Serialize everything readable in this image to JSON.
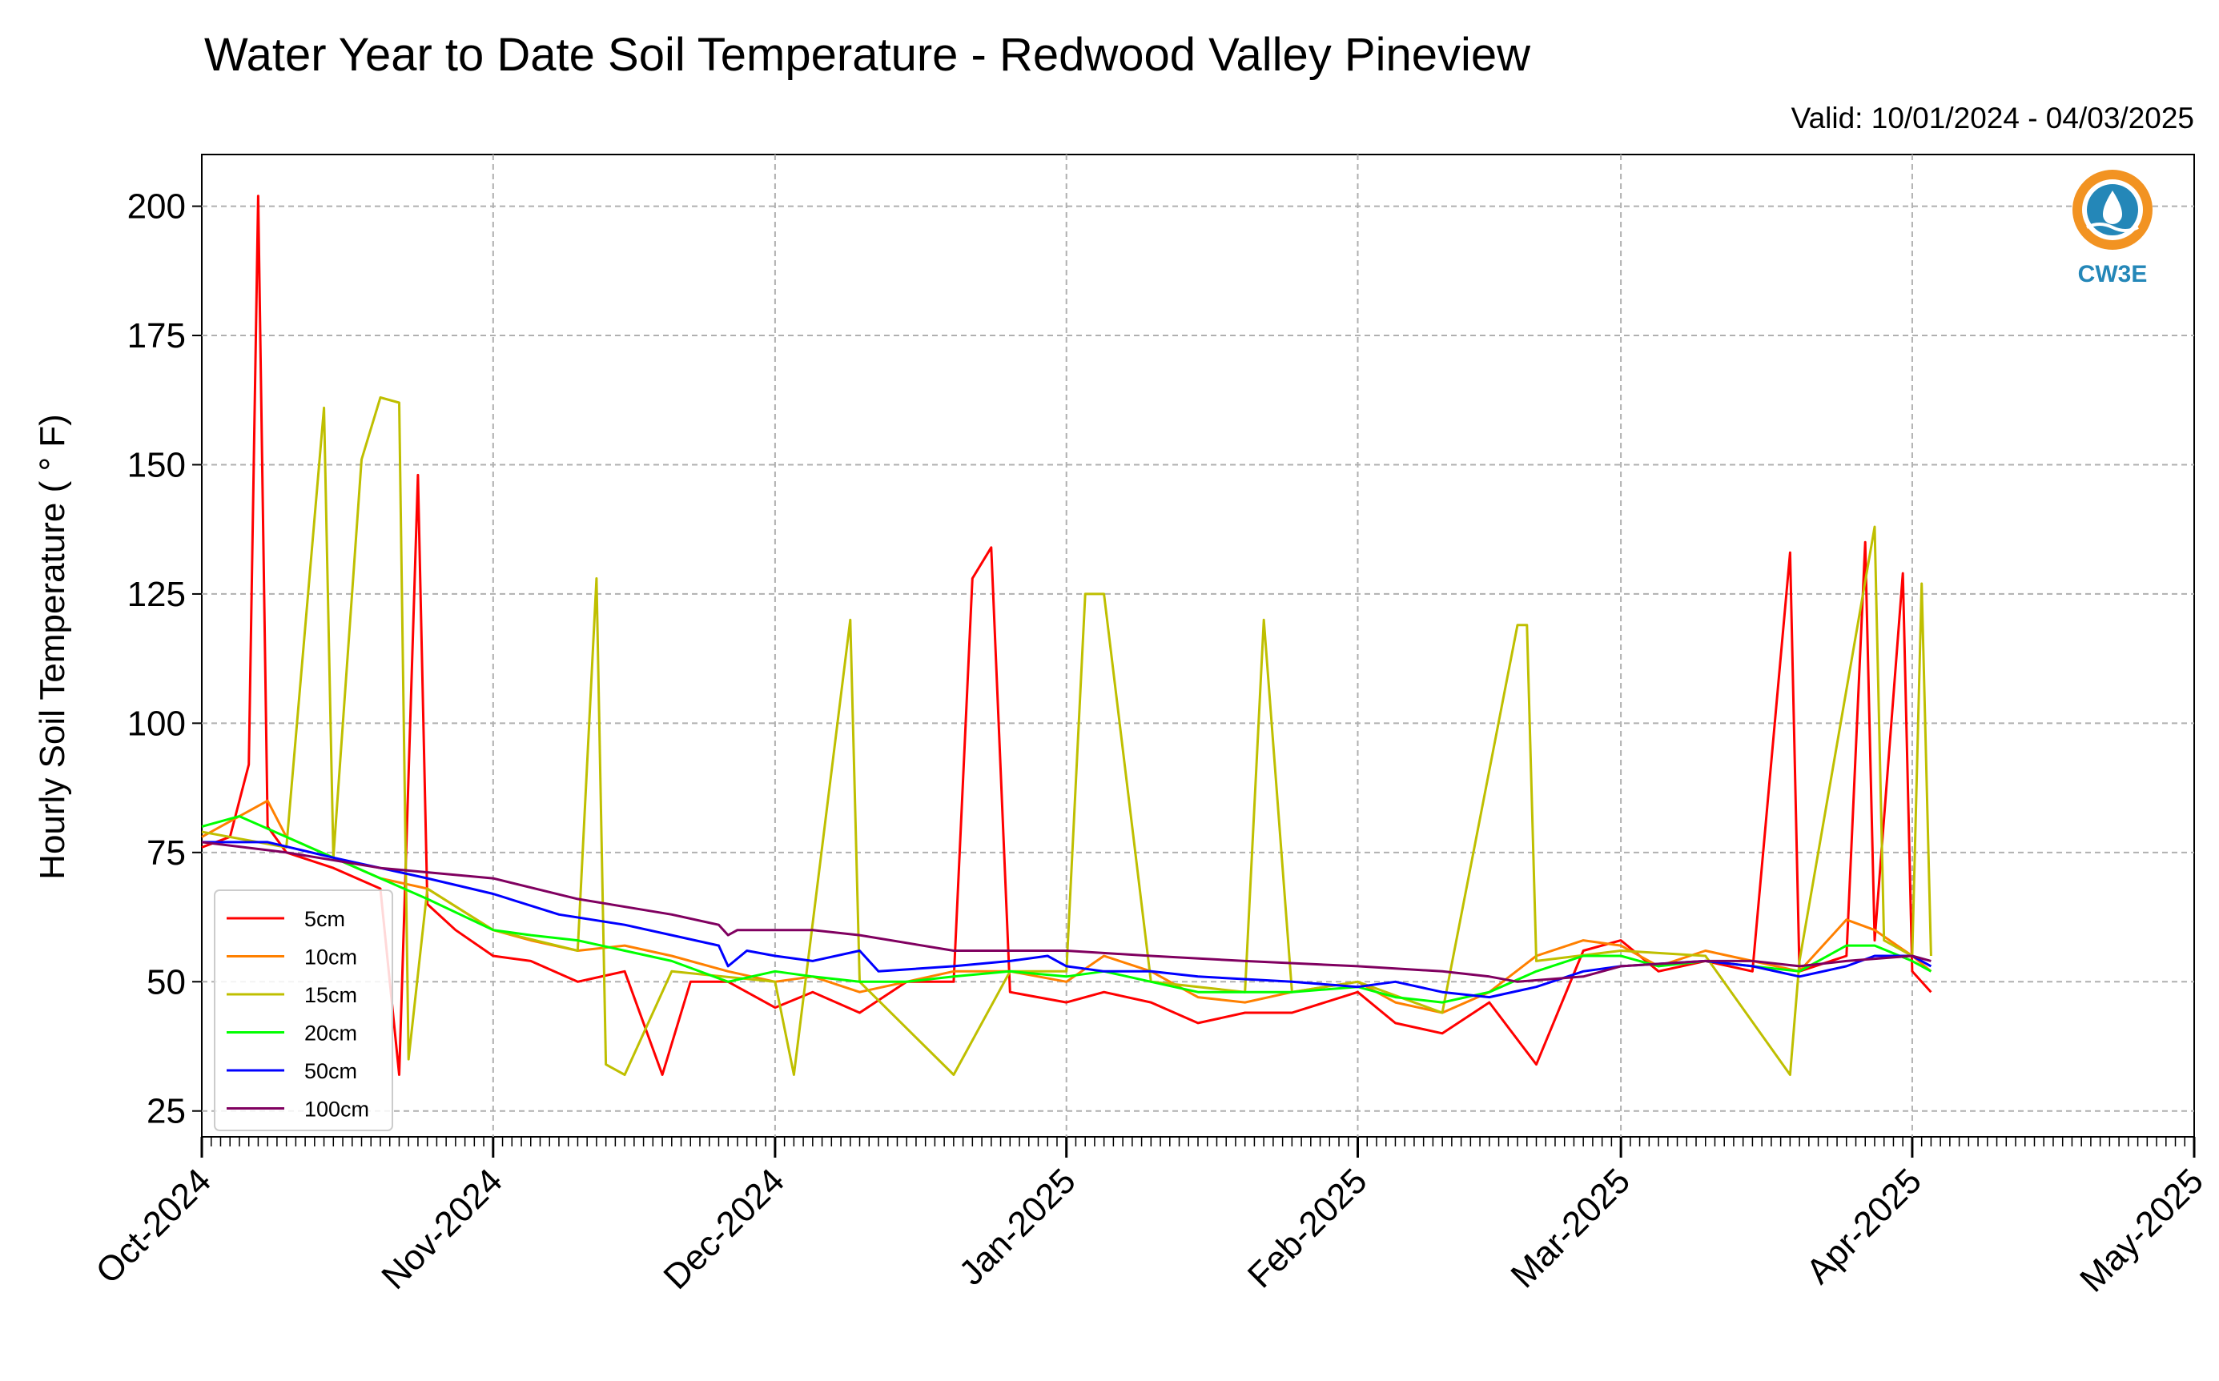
{
  "chart_data": {
    "type": "line",
    "title": "Water Year to Date Soil Temperature - Redwood Valley Pineview",
    "subtitle": "Valid: 10/01/2024 - 04/03/2025",
    "ylabel": "Hourly Soil Temperature ( ° F)",
    "xlabel": "",
    "ylim": [
      20,
      210
    ],
    "xlim": [
      "2024-10-01",
      "2025-05-01"
    ],
    "yticks": [
      25,
      50,
      75,
      100,
      125,
      150,
      175,
      200
    ],
    "ytick_labels": [
      "25",
      "50",
      "75",
      "100",
      "125",
      "150",
      "175",
      "200"
    ],
    "xticks": [
      "2024-10-01",
      "2024-11-01",
      "2024-12-01",
      "2025-01-01",
      "2025-02-01",
      "2025-03-01",
      "2025-04-01",
      "2025-05-01"
    ],
    "xtick_labels": [
      "Oct-2024",
      "Nov-2024",
      "Dec-2024",
      "Jan-2025",
      "Feb-2025",
      "Mar-2025",
      "Apr-2025",
      "May-2025"
    ],
    "grid": true,
    "legend_position": "lower-left",
    "series": [
      {
        "name": "5cm",
        "color": "#ff0000",
        "values": [
          {
            "x": "2024-10-01",
            "y": 76
          },
          {
            "x": "2024-10-04",
            "y": 78
          },
          {
            "x": "2024-10-06",
            "y": 92
          },
          {
            "x": "2024-10-07",
            "y": 202
          },
          {
            "x": "2024-10-08",
            "y": 80
          },
          {
            "x": "2024-10-10",
            "y": 75
          },
          {
            "x": "2024-10-15",
            "y": 72
          },
          {
            "x": "2024-10-20",
            "y": 68
          },
          {
            "x": "2024-10-22",
            "y": 32
          },
          {
            "x": "2024-10-24",
            "y": 148
          },
          {
            "x": "2024-10-25",
            "y": 65
          },
          {
            "x": "2024-10-28",
            "y": 60
          },
          {
            "x": "2024-11-01",
            "y": 55
          },
          {
            "x": "2024-11-05",
            "y": 54
          },
          {
            "x": "2024-11-10",
            "y": 50
          },
          {
            "x": "2024-11-15",
            "y": 52
          },
          {
            "x": "2024-11-19",
            "y": 32
          },
          {
            "x": "2024-11-22",
            "y": 50
          },
          {
            "x": "2024-11-26",
            "y": 50
          },
          {
            "x": "2024-12-01",
            "y": 45
          },
          {
            "x": "2024-12-05",
            "y": 48
          },
          {
            "x": "2024-12-10",
            "y": 44
          },
          {
            "x": "2024-12-15",
            "y": 50
          },
          {
            "x": "2024-12-20",
            "y": 50
          },
          {
            "x": "2024-12-22",
            "y": 128
          },
          {
            "x": "2024-12-24",
            "y": 134
          },
          {
            "x": "2024-12-26",
            "y": 48
          },
          {
            "x": "2025-01-01",
            "y": 46
          },
          {
            "x": "2025-01-05",
            "y": 48
          },
          {
            "x": "2025-01-10",
            "y": 46
          },
          {
            "x": "2025-01-15",
            "y": 42
          },
          {
            "x": "2025-01-20",
            "y": 44
          },
          {
            "x": "2025-01-25",
            "y": 44
          },
          {
            "x": "2025-02-01",
            "y": 48
          },
          {
            "x": "2025-02-05",
            "y": 42
          },
          {
            "x": "2025-02-10",
            "y": 40
          },
          {
            "x": "2025-02-15",
            "y": 46
          },
          {
            "x": "2025-02-20",
            "y": 34
          },
          {
            "x": "2025-02-25",
            "y": 56
          },
          {
            "x": "2025-03-01",
            "y": 58
          },
          {
            "x": "2025-03-05",
            "y": 52
          },
          {
            "x": "2025-03-10",
            "y": 54
          },
          {
            "x": "2025-03-15",
            "y": 52
          },
          {
            "x": "2025-03-19",
            "y": 133
          },
          {
            "x": "2025-03-20",
            "y": 52
          },
          {
            "x": "2025-03-25",
            "y": 55
          },
          {
            "x": "2025-03-27",
            "y": 135
          },
          {
            "x": "2025-03-28",
            "y": 58
          },
          {
            "x": "2025-03-31",
            "y": 129
          },
          {
            "x": "2025-04-01",
            "y": 52
          },
          {
            "x": "2025-04-03",
            "y": 48
          }
        ]
      },
      {
        "name": "10cm",
        "color": "#ff8000",
        "values": [
          {
            "x": "2024-10-01",
            "y": 78
          },
          {
            "x": "2024-10-05",
            "y": 82
          },
          {
            "x": "2024-10-08",
            "y": 85
          },
          {
            "x": "2024-10-10",
            "y": 78
          },
          {
            "x": "2024-10-15",
            "y": 74
          },
          {
            "x": "2024-10-20",
            "y": 70
          },
          {
            "x": "2024-10-25",
            "y": 68
          },
          {
            "x": "2024-11-01",
            "y": 60
          },
          {
            "x": "2024-11-05",
            "y": 58
          },
          {
            "x": "2024-11-10",
            "y": 56
          },
          {
            "x": "2024-11-15",
            "y": 57
          },
          {
            "x": "2024-11-20",
            "y": 55
          },
          {
            "x": "2024-11-26",
            "y": 52
          },
          {
            "x": "2024-12-01",
            "y": 50
          },
          {
            "x": "2024-12-05",
            "y": 51
          },
          {
            "x": "2024-12-10",
            "y": 48
          },
          {
            "x": "2024-12-15",
            "y": 50
          },
          {
            "x": "2024-12-20",
            "y": 52
          },
          {
            "x": "2024-12-26",
            "y": 52
          },
          {
            "x": "2025-01-01",
            "y": 50
          },
          {
            "x": "2025-01-05",
            "y": 55
          },
          {
            "x": "2025-01-10",
            "y": 52
          },
          {
            "x": "2025-01-15",
            "y": 47
          },
          {
            "x": "2025-01-20",
            "y": 46
          },
          {
            "x": "2025-01-25",
            "y": 48
          },
          {
            "x": "2025-02-01",
            "y": 50
          },
          {
            "x": "2025-02-05",
            "y": 46
          },
          {
            "x": "2025-02-10",
            "y": 44
          },
          {
            "x": "2025-02-15",
            "y": 48
          },
          {
            "x": "2025-02-20",
            "y": 55
          },
          {
            "x": "2025-02-25",
            "y": 58
          },
          {
            "x": "2025-03-01",
            "y": 57
          },
          {
            "x": "2025-03-05",
            "y": 53
          },
          {
            "x": "2025-03-10",
            "y": 56
          },
          {
            "x": "2025-03-15",
            "y": 54
          },
          {
            "x": "2025-03-20",
            "y": 52
          },
          {
            "x": "2025-03-25",
            "y": 62
          },
          {
            "x": "2025-03-28",
            "y": 60
          },
          {
            "x": "2025-04-01",
            "y": 55
          },
          {
            "x": "2025-04-03",
            "y": 52
          }
        ]
      },
      {
        "name": "15cm",
        "color": "#bfbf00",
        "values": [
          {
            "x": "2024-10-01",
            "y": 79
          },
          {
            "x": "2024-10-10",
            "y": 76
          },
          {
            "x": "2024-10-14",
            "y": 161
          },
          {
            "x": "2024-10-15",
            "y": 74
          },
          {
            "x": "2024-10-18",
            "y": 151
          },
          {
            "x": "2024-10-20",
            "y": 163
          },
          {
            "x": "2024-10-22",
            "y": 162
          },
          {
            "x": "2024-10-23",
            "y": 35
          },
          {
            "x": "2024-10-25",
            "y": 68
          },
          {
            "x": "2024-11-01",
            "y": 60
          },
          {
            "x": "2024-11-10",
            "y": 56
          },
          {
            "x": "2024-11-12",
            "y": 128
          },
          {
            "x": "2024-11-13",
            "y": 34
          },
          {
            "x": "2024-11-15",
            "y": 32
          },
          {
            "x": "2024-11-20",
            "y": 52
          },
          {
            "x": "2024-12-01",
            "y": 50
          },
          {
            "x": "2024-12-03",
            "y": 32
          },
          {
            "x": "2024-12-09",
            "y": 120
          },
          {
            "x": "2024-12-10",
            "y": 50
          },
          {
            "x": "2024-12-20",
            "y": 32
          },
          {
            "x": "2024-12-26",
            "y": 52
          },
          {
            "x": "2025-01-01",
            "y": 52
          },
          {
            "x": "2025-01-03",
            "y": 125
          },
          {
            "x": "2025-01-05",
            "y": 125
          },
          {
            "x": "2025-01-10",
            "y": 50
          },
          {
            "x": "2025-01-20",
            "y": 48
          },
          {
            "x": "2025-01-22",
            "y": 120
          },
          {
            "x": "2025-01-25",
            "y": 48
          },
          {
            "x": "2025-02-01",
            "y": 50
          },
          {
            "x": "2025-02-10",
            "y": 44
          },
          {
            "x": "2025-02-18",
            "y": 119
          },
          {
            "x": "2025-02-19",
            "y": 119
          },
          {
            "x": "2025-02-20",
            "y": 54
          },
          {
            "x": "2025-03-01",
            "y": 56
          },
          {
            "x": "2025-03-10",
            "y": 55
          },
          {
            "x": "2025-03-19",
            "y": 32
          },
          {
            "x": "2025-03-20",
            "y": 54
          },
          {
            "x": "2025-03-28",
            "y": 138
          },
          {
            "x": "2025-03-29",
            "y": 58
          },
          {
            "x": "2025-04-01",
            "y": 55
          },
          {
            "x": "2025-04-02",
            "y": 127
          },
          {
            "x": "2025-04-03",
            "y": 55
          }
        ]
      },
      {
        "name": "20cm",
        "color": "#00ff00",
        "values": [
          {
            "x": "2024-10-01",
            "y": 80
          },
          {
            "x": "2024-10-05",
            "y": 82
          },
          {
            "x": "2024-10-10",
            "y": 78
          },
          {
            "x": "2024-10-15",
            "y": 74
          },
          {
            "x": "2024-10-20",
            "y": 70
          },
          {
            "x": "2024-10-25",
            "y": 66
          },
          {
            "x": "2024-11-01",
            "y": 60
          },
          {
            "x": "2024-11-05",
            "y": 59
          },
          {
            "x": "2024-11-10",
            "y": 58
          },
          {
            "x": "2024-11-15",
            "y": 56
          },
          {
            "x": "2024-11-20",
            "y": 54
          },
          {
            "x": "2024-11-26",
            "y": 50
          },
          {
            "x": "2024-12-01",
            "y": 52
          },
          {
            "x": "2024-12-05",
            "y": 51
          },
          {
            "x": "2024-12-10",
            "y": 50
          },
          {
            "x": "2024-12-15",
            "y": 50
          },
          {
            "x": "2024-12-20",
            "y": 51
          },
          {
            "x": "2024-12-26",
            "y": 52
          },
          {
            "x": "2025-01-01",
            "y": 51
          },
          {
            "x": "2025-01-05",
            "y": 52
          },
          {
            "x": "2025-01-10",
            "y": 50
          },
          {
            "x": "2025-01-15",
            "y": 48
          },
          {
            "x": "2025-01-20",
            "y": 48
          },
          {
            "x": "2025-01-25",
            "y": 48
          },
          {
            "x": "2025-02-01",
            "y": 49
          },
          {
            "x": "2025-02-05",
            "y": 47
          },
          {
            "x": "2025-02-10",
            "y": 46
          },
          {
            "x": "2025-02-15",
            "y": 48
          },
          {
            "x": "2025-02-20",
            "y": 52
          },
          {
            "x": "2025-02-25",
            "y": 55
          },
          {
            "x": "2025-03-01",
            "y": 55
          },
          {
            "x": "2025-03-05",
            "y": 53
          },
          {
            "x": "2025-03-10",
            "y": 54
          },
          {
            "x": "2025-03-15",
            "y": 53
          },
          {
            "x": "2025-03-20",
            "y": 52
          },
          {
            "x": "2025-03-25",
            "y": 57
          },
          {
            "x": "2025-03-28",
            "y": 57
          },
          {
            "x": "2025-04-01",
            "y": 54
          },
          {
            "x": "2025-04-03",
            "y": 52
          }
        ]
      },
      {
        "name": "50cm",
        "color": "#0000ff",
        "values": [
          {
            "x": "2024-10-01",
            "y": 77
          },
          {
            "x": "2024-10-08",
            "y": 77
          },
          {
            "x": "2024-10-15",
            "y": 74
          },
          {
            "x": "2024-10-20",
            "y": 72
          },
          {
            "x": "2024-10-25",
            "y": 70
          },
          {
            "x": "2024-11-01",
            "y": 67
          },
          {
            "x": "2024-11-08",
            "y": 63
          },
          {
            "x": "2024-11-15",
            "y": 61
          },
          {
            "x": "2024-11-20",
            "y": 59
          },
          {
            "x": "2024-11-25",
            "y": 57
          },
          {
            "x": "2024-11-26",
            "y": 53
          },
          {
            "x": "2024-11-28",
            "y": 56
          },
          {
            "x": "2024-12-01",
            "y": 55
          },
          {
            "x": "2024-12-05",
            "y": 54
          },
          {
            "x": "2024-12-10",
            "y": 56
          },
          {
            "x": "2024-12-12",
            "y": 52
          },
          {
            "x": "2024-12-20",
            "y": 53
          },
          {
            "x": "2024-12-26",
            "y": 54
          },
          {
            "x": "2024-12-30",
            "y": 55
          },
          {
            "x": "2025-01-01",
            "y": 53
          },
          {
            "x": "2025-01-05",
            "y": 52
          },
          {
            "x": "2025-01-10",
            "y": 52
          },
          {
            "x": "2025-01-15",
            "y": 51
          },
          {
            "x": "2025-01-25",
            "y": 50
          },
          {
            "x": "2025-02-01",
            "y": 49
          },
          {
            "x": "2025-02-05",
            "y": 50
          },
          {
            "x": "2025-02-10",
            "y": 48
          },
          {
            "x": "2025-02-15",
            "y": 47
          },
          {
            "x": "2025-02-20",
            "y": 49
          },
          {
            "x": "2025-02-25",
            "y": 52
          },
          {
            "x": "2025-03-01",
            "y": 53
          },
          {
            "x": "2025-03-10",
            "y": 54
          },
          {
            "x": "2025-03-15",
            "y": 53
          },
          {
            "x": "2025-03-20",
            "y": 51
          },
          {
            "x": "2025-03-25",
            "y": 53
          },
          {
            "x": "2025-03-28",
            "y": 55
          },
          {
            "x": "2025-04-01",
            "y": 55
          },
          {
            "x": "2025-04-03",
            "y": 53
          }
        ]
      },
      {
        "name": "100cm",
        "color": "#800060",
        "values": [
          {
            "x": "2024-10-01",
            "y": 77
          },
          {
            "x": "2024-10-10",
            "y": 75
          },
          {
            "x": "2024-10-20",
            "y": 72
          },
          {
            "x": "2024-11-01",
            "y": 70
          },
          {
            "x": "2024-11-10",
            "y": 66
          },
          {
            "x": "2024-11-20",
            "y": 63
          },
          {
            "x": "2024-11-25",
            "y": 61
          },
          {
            "x": "2024-11-26",
            "y": 59
          },
          {
            "x": "2024-11-27",
            "y": 60
          },
          {
            "x": "2024-12-05",
            "y": 60
          },
          {
            "x": "2024-12-10",
            "y": 59
          },
          {
            "x": "2024-12-20",
            "y": 56
          },
          {
            "x": "2025-01-01",
            "y": 56
          },
          {
            "x": "2025-01-10",
            "y": 55
          },
          {
            "x": "2025-01-20",
            "y": 54
          },
          {
            "x": "2025-02-01",
            "y": 53
          },
          {
            "x": "2025-02-10",
            "y": 52
          },
          {
            "x": "2025-02-15",
            "y": 51
          },
          {
            "x": "2025-02-18",
            "y": 50
          },
          {
            "x": "2025-02-25",
            "y": 51
          },
          {
            "x": "2025-03-01",
            "y": 53
          },
          {
            "x": "2025-03-10",
            "y": 54
          },
          {
            "x": "2025-03-15",
            "y": 54
          },
          {
            "x": "2025-03-20",
            "y": 53
          },
          {
            "x": "2025-03-25",
            "y": 54
          },
          {
            "x": "2025-04-01",
            "y": 55
          },
          {
            "x": "2025-04-03",
            "y": 54
          }
        ]
      }
    ]
  },
  "logo": {
    "text": "CW3E",
    "accent_color": "#f29322",
    "brand_color": "#2487b8"
  }
}
